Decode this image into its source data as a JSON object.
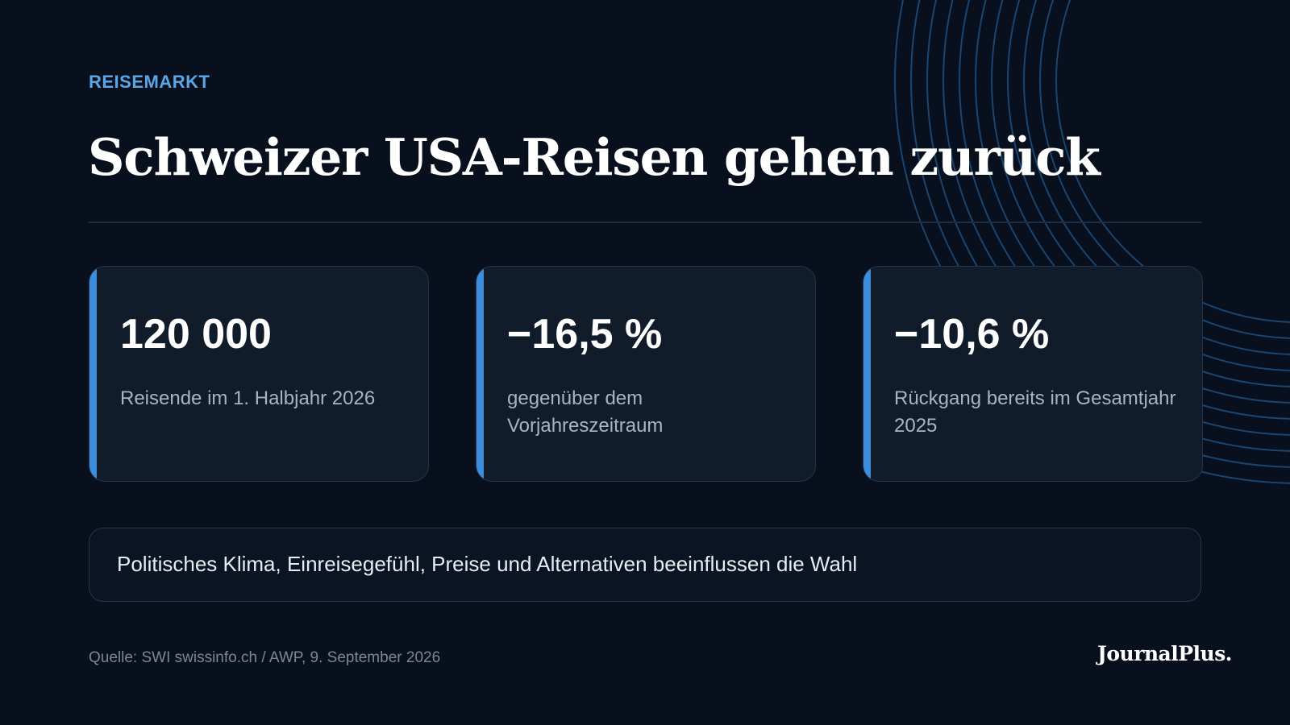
{
  "kicker": "REISEMARKT",
  "headline": "Schweizer USA-Reisen gehen zurück",
  "stats": [
    {
      "value": "120 000",
      "label": "Reisende im 1. Halbjahr 2026"
    },
    {
      "value": "−16,5 %",
      "label": "gegenüber dem Vorjahreszeitraum"
    },
    {
      "value": "−10,6 %",
      "label": "Rückgang bereits im Gesamtjahr 2025"
    }
  ],
  "note": "Politisches Klima, Einreisegefühl, Preise und Alternativen beeinflussen die Wahl",
  "source": "Quelle: SWI swissinfo.ch / AWP, 9. September 2026",
  "brand": "JournalPlus.",
  "colors": {
    "background": "#07101c",
    "accent": "#3d8fdc",
    "kicker": "#5aa6e6",
    "card": "#111c2b",
    "arc": "#1d4f80"
  }
}
